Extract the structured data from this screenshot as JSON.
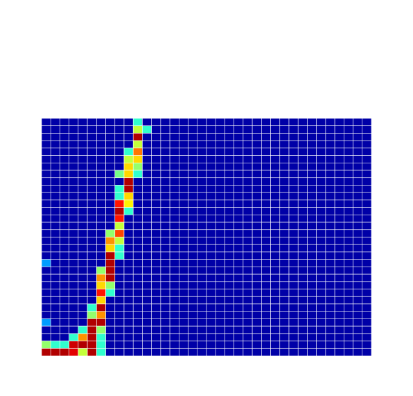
{
  "chart_data": {
    "type": "heatmap",
    "colormap": "jet",
    "zlim": [
      -0.04,
      1
    ],
    "grid": true,
    "grid_color": "#ffffff",
    "z": [
      [
        0,
        0,
        0,
        0,
        0,
        0,
        0,
        0,
        0,
        0,
        0.4,
        0,
        0,
        0,
        0,
        0,
        0,
        0,
        0,
        0,
        0,
        0,
        0,
        0,
        0,
        0,
        0,
        0,
        0,
        0,
        0,
        0,
        0,
        0,
        0,
        0
      ],
      [
        0,
        0,
        0,
        0,
        0,
        0,
        0,
        0,
        0,
        0,
        0.55,
        0.4,
        0,
        0,
        0,
        0,
        0,
        0,
        0,
        0,
        0,
        0,
        0,
        0,
        0,
        0,
        0,
        0,
        0,
        0,
        0,
        0,
        0,
        0,
        0,
        0
      ],
      [
        0,
        0,
        0,
        0,
        0,
        0,
        0,
        0,
        0,
        0,
        0.95,
        0,
        0,
        0,
        0,
        0,
        0,
        0,
        0,
        0,
        0,
        0,
        0,
        0,
        0,
        0,
        0,
        0,
        0,
        0,
        0,
        0,
        0,
        0,
        0,
        0
      ],
      [
        0,
        0,
        0,
        0,
        0,
        0,
        0,
        0,
        0,
        0,
        0.55,
        0,
        0,
        0,
        0,
        0,
        0,
        0,
        0,
        0,
        0,
        0,
        0,
        0,
        0,
        0,
        0,
        0,
        0,
        0,
        0,
        0,
        0,
        0,
        0,
        0
      ],
      [
        0,
        0,
        0,
        0,
        0,
        0,
        0,
        0,
        0,
        0.4,
        0.75,
        0,
        0,
        0,
        0,
        0,
        0,
        0,
        0,
        0,
        0,
        0,
        0,
        0,
        0,
        0,
        0,
        0,
        0,
        0,
        0,
        0,
        0,
        0,
        0,
        0
      ],
      [
        0,
        0,
        0,
        0,
        0,
        0,
        0,
        0,
        0,
        0.55,
        0.65,
        0,
        0,
        0,
        0,
        0,
        0,
        0,
        0,
        0,
        0,
        0,
        0,
        0,
        0,
        0,
        0,
        0,
        0,
        0,
        0,
        0,
        0,
        0,
        0,
        0
      ],
      [
        0,
        0,
        0,
        0,
        0,
        0,
        0,
        0,
        0,
        0.65,
        0.5,
        0,
        0,
        0,
        0,
        0,
        0,
        0,
        0,
        0,
        0,
        0,
        0,
        0,
        0,
        0,
        0,
        0,
        0,
        0,
        0,
        0,
        0,
        0,
        0,
        0
      ],
      [
        0,
        0,
        0,
        0,
        0,
        0,
        0,
        0,
        0.47,
        0.65,
        0.4,
        0,
        0,
        0,
        0,
        0,
        0,
        0,
        0,
        0,
        0,
        0,
        0,
        0,
        0,
        0,
        0,
        0,
        0,
        0,
        0,
        0,
        0,
        0,
        0,
        0
      ],
      [
        0,
        0,
        0,
        0,
        0,
        0,
        0,
        0,
        0,
        0.95,
        0,
        0,
        0,
        0,
        0,
        0,
        0,
        0,
        0,
        0,
        0,
        0,
        0,
        0,
        0,
        0,
        0,
        0,
        0,
        0,
        0,
        0,
        0,
        0,
        0,
        0
      ],
      [
        0,
        0,
        0,
        0,
        0,
        0,
        0,
        0,
        0.4,
        0.95,
        0,
        0,
        0,
        0,
        0,
        0,
        0,
        0,
        0,
        0,
        0,
        0,
        0,
        0,
        0,
        0,
        0,
        0,
        0,
        0,
        0,
        0,
        0,
        0,
        0,
        0
      ],
      [
        0,
        0,
        0,
        0,
        0,
        0,
        0,
        0,
        0.4,
        0.65,
        0,
        0,
        0,
        0,
        0,
        0,
        0,
        0,
        0,
        0,
        0,
        0,
        0,
        0,
        0,
        0,
        0,
        0,
        0,
        0,
        0,
        0,
        0,
        0,
        0,
        0
      ],
      [
        0,
        0,
        0,
        0,
        0,
        0,
        0,
        0,
        0.85,
        0.62,
        0,
        0,
        0,
        0,
        0,
        0,
        0,
        0,
        0,
        0,
        0,
        0,
        0,
        0,
        0,
        0,
        0,
        0,
        0,
        0,
        0,
        0,
        0,
        0,
        0,
        0
      ],
      [
        0,
        0,
        0,
        0,
        0,
        0,
        0,
        0,
        0.95,
        0.4,
        0,
        0,
        0,
        0,
        0,
        0,
        0,
        0,
        0,
        0,
        0,
        0,
        0,
        0,
        0,
        0,
        0,
        0,
        0,
        0,
        0,
        0,
        0,
        0,
        0,
        0
      ],
      [
        0,
        0,
        0,
        0,
        0,
        0,
        0,
        0,
        0.85,
        0,
        0,
        0,
        0,
        0,
        0,
        0,
        0,
        0,
        0,
        0,
        0,
        0,
        0,
        0,
        0,
        0,
        0,
        0,
        0,
        0,
        0,
        0,
        0,
        0,
        0,
        0
      ],
      [
        0,
        0,
        0,
        0,
        0,
        0,
        0,
        0,
        0.55,
        0,
        0,
        0,
        0,
        0,
        0,
        0,
        0,
        0,
        0,
        0,
        0,
        0,
        0,
        0,
        0,
        0,
        0,
        0,
        0,
        0,
        0,
        0,
        0,
        0,
        0,
        0
      ],
      [
        0,
        0,
        0,
        0,
        0,
        0,
        0,
        0.5,
        0.8,
        0,
        0,
        0,
        0,
        0,
        0,
        0,
        0,
        0,
        0,
        0,
        0,
        0,
        0,
        0,
        0,
        0,
        0,
        0,
        0,
        0,
        0,
        0,
        0,
        0,
        0,
        0
      ],
      [
        0,
        0,
        0,
        0,
        0,
        0,
        0,
        0.72,
        0.55,
        0,
        0,
        0,
        0,
        0,
        0,
        0,
        0,
        0,
        0,
        0,
        0,
        0,
        0,
        0,
        0,
        0,
        0,
        0,
        0,
        0,
        0,
        0,
        0,
        0,
        0,
        0
      ],
      [
        0,
        0,
        0,
        0,
        0,
        0,
        0,
        0.65,
        0.4,
        0,
        0,
        0,
        0,
        0,
        0,
        0,
        0,
        0,
        0,
        0,
        0,
        0,
        0,
        0,
        0,
        0,
        0,
        0,
        0,
        0,
        0,
        0,
        0,
        0,
        0,
        0
      ],
      [
        0,
        0,
        0,
        0,
        0,
        0,
        0,
        0.95,
        0.4,
        0,
        0,
        0,
        0,
        0,
        0,
        0,
        0,
        0,
        0,
        0,
        0,
        0,
        0,
        0,
        0,
        0,
        0,
        0,
        0,
        0,
        0,
        0,
        0,
        0,
        0,
        0
      ],
      [
        0.25,
        0,
        0,
        0,
        0,
        0,
        0,
        0.95,
        0,
        0,
        0,
        0,
        0,
        0,
        0,
        0,
        0,
        0,
        0,
        0,
        0,
        0,
        0,
        0,
        0,
        0,
        0,
        0,
        0,
        0,
        0,
        0,
        0,
        0,
        0,
        0
      ],
      [
        0,
        0,
        0,
        0,
        0,
        0,
        0.5,
        0.95,
        0,
        0,
        0,
        0,
        0,
        0,
        0,
        0,
        0,
        0,
        0,
        0,
        0,
        0,
        0,
        0,
        0,
        0,
        0,
        0,
        0,
        0,
        0,
        0,
        0,
        0,
        0,
        0
      ],
      [
        0,
        0,
        0,
        0,
        0,
        0,
        0.72,
        0.95,
        0,
        0,
        0,
        0,
        0,
        0,
        0,
        0,
        0,
        0,
        0,
        0,
        0,
        0,
        0,
        0,
        0,
        0,
        0,
        0,
        0,
        0,
        0,
        0,
        0,
        0,
        0,
        0
      ],
      [
        0,
        0,
        0,
        0,
        0,
        0,
        0.65,
        0.5,
        0,
        0,
        0,
        0,
        0,
        0,
        0,
        0,
        0,
        0,
        0,
        0,
        0,
        0,
        0,
        0,
        0,
        0,
        0,
        0,
        0,
        0,
        0,
        0,
        0,
        0,
        0,
        0
      ],
      [
        0,
        0,
        0,
        0,
        0,
        0,
        0.85,
        0.4,
        0,
        0,
        0,
        0,
        0,
        0,
        0,
        0,
        0,
        0,
        0,
        0,
        0,
        0,
        0,
        0,
        0,
        0,
        0,
        0,
        0,
        0,
        0,
        0,
        0,
        0,
        0,
        0
      ],
      [
        0,
        0,
        0,
        0,
        0,
        0,
        0.65,
        0,
        0,
        0,
        0,
        0,
        0,
        0,
        0,
        0,
        0,
        0,
        0,
        0,
        0,
        0,
        0,
        0,
        0,
        0,
        0,
        0,
        0,
        0,
        0,
        0,
        0,
        0,
        0,
        0
      ],
      [
        0,
        0,
        0,
        0,
        0,
        0.4,
        0.95,
        0,
        0,
        0,
        0,
        0,
        0,
        0,
        0,
        0,
        0,
        0,
        0,
        0,
        0,
        0,
        0,
        0,
        0,
        0,
        0,
        0,
        0,
        0,
        0,
        0,
        0,
        0,
        0,
        0
      ],
      [
        0,
        0,
        0,
        0,
        0,
        0.5,
        0.72,
        0,
        0,
        0,
        0,
        0,
        0,
        0,
        0,
        0,
        0,
        0,
        0,
        0,
        0,
        0,
        0,
        0,
        0,
        0,
        0,
        0,
        0,
        0,
        0,
        0,
        0,
        0,
        0,
        0
      ],
      [
        0.25,
        0,
        0,
        0,
        0,
        0.95,
        0.95,
        0,
        0,
        0,
        0,
        0,
        0,
        0,
        0,
        0,
        0,
        0,
        0,
        0,
        0,
        0,
        0,
        0,
        0,
        0,
        0,
        0,
        0,
        0,
        0,
        0,
        0,
        0,
        0,
        0
      ],
      [
        0,
        0,
        0,
        0,
        0.4,
        0.95,
        0.5,
        0,
        0,
        0,
        0,
        0,
        0,
        0,
        0,
        0,
        0,
        0,
        0,
        0,
        0,
        0,
        0,
        0,
        0,
        0,
        0,
        0,
        0,
        0,
        0,
        0,
        0,
        0,
        0,
        0
      ],
      [
        0,
        0,
        0,
        0.4,
        0.72,
        0.95,
        0.4,
        0,
        0,
        0,
        0,
        0,
        0,
        0,
        0,
        0,
        0,
        0,
        0,
        0,
        0,
        0,
        0,
        0,
        0,
        0,
        0,
        0,
        0,
        0,
        0,
        0,
        0,
        0,
        0,
        0
      ],
      [
        0.5,
        0.4,
        0.4,
        0.92,
        0.95,
        0.95,
        0.4,
        0,
        0,
        0,
        0,
        0,
        0,
        0,
        0,
        0,
        0,
        0,
        0,
        0,
        0,
        0,
        0,
        0,
        0,
        0,
        0,
        0,
        0,
        0,
        0,
        0,
        0,
        0,
        0,
        0
      ],
      [
        0.95,
        0.95,
        0.95,
        0.9,
        0.55,
        0.95,
        0.4,
        0,
        0,
        0,
        0,
        0,
        0,
        0,
        0,
        0,
        0,
        0,
        0,
        0,
        0,
        0,
        0,
        0,
        0,
        0,
        0,
        0,
        0,
        0,
        0,
        0,
        0,
        0,
        0,
        0
      ]
    ]
  }
}
